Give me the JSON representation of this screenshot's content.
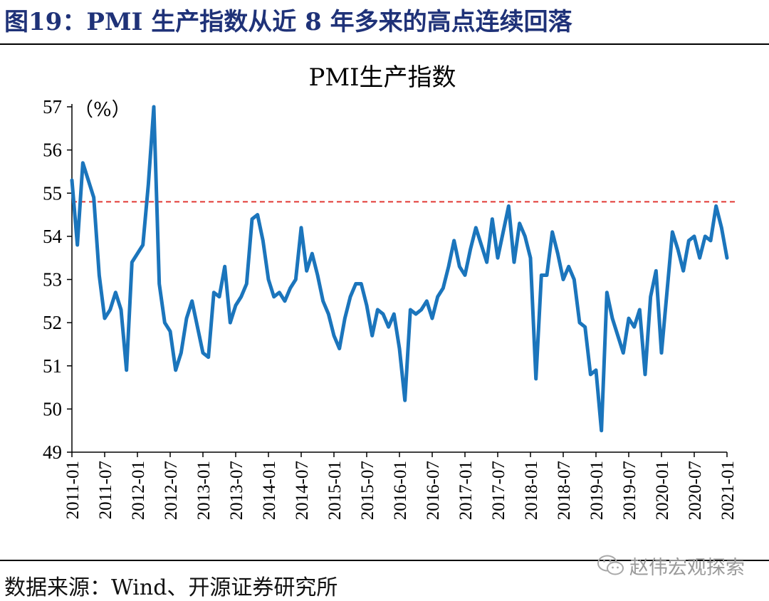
{
  "header": {
    "figure_title": "图19：PMI 生产指数从近 8 年多来的高点连续回落"
  },
  "footer": {
    "source": "数据来源：Wind、开源证券研究所",
    "watermark": "赵伟宏观探索",
    "watermark_icon": "wechat-icon"
  },
  "colors": {
    "title": "#1f3278",
    "line": "#1b75bc",
    "reference_line": "#e23a35"
  },
  "chart_data": {
    "type": "line",
    "title": "PMI生产指数",
    "ylabel": "（%）",
    "xlabel": "",
    "ylim": [
      49,
      57
    ],
    "yticks": [
      49,
      50,
      51,
      52,
      53,
      54,
      55,
      56,
      57
    ],
    "x_tick_labels": [
      "2011-01",
      "2011-07",
      "2012-01",
      "2012-07",
      "2013-01",
      "2013-07",
      "2014-01",
      "2014-07",
      "2015-01",
      "2015-07",
      "2016-01",
      "2016-07",
      "2017-01",
      "2017-07",
      "2018-01",
      "2018-07",
      "2019-01",
      "2019-07",
      "2020-01",
      "2020-07",
      "2021-01"
    ],
    "reference_line": {
      "y": 54.8,
      "style": "dashed"
    },
    "grid": false,
    "series": [
      {
        "x": [
          "2011-01",
          "2011-02",
          "2011-03",
          "2011-04",
          "2011-05",
          "2011-06",
          "2011-07",
          "2011-08",
          "2011-09",
          "2011-10",
          "2011-11",
          "2011-12",
          "2012-01",
          "2012-02",
          "2012-03",
          "2012-04",
          "2012-05",
          "2012-06",
          "2012-07",
          "2012-08",
          "2012-09",
          "2012-10",
          "2012-11",
          "2012-12",
          "2013-01",
          "2013-02",
          "2013-03",
          "2013-04",
          "2013-05",
          "2013-06",
          "2013-07",
          "2013-08",
          "2013-09",
          "2013-10",
          "2013-11",
          "2013-12",
          "2014-01",
          "2014-02",
          "2014-03",
          "2014-04",
          "2014-05",
          "2014-06",
          "2014-07",
          "2014-08",
          "2014-09",
          "2014-10",
          "2014-11",
          "2014-12",
          "2015-01",
          "2015-02",
          "2015-03",
          "2015-04",
          "2015-05",
          "2015-06",
          "2015-07",
          "2015-08",
          "2015-09",
          "2015-10",
          "2015-11",
          "2015-12",
          "2016-01",
          "2016-02",
          "2016-03",
          "2016-04",
          "2016-05",
          "2016-06",
          "2016-07",
          "2016-08",
          "2016-09",
          "2016-10",
          "2016-11",
          "2016-12",
          "2017-01",
          "2017-02",
          "2017-03",
          "2017-04",
          "2017-05",
          "2017-06",
          "2017-07",
          "2017-08",
          "2017-09",
          "2017-10",
          "2017-11",
          "2017-12",
          "2018-01",
          "2018-02",
          "2018-03",
          "2018-04",
          "2018-05",
          "2018-06",
          "2018-07",
          "2018-08",
          "2018-09",
          "2018-10",
          "2018-11",
          "2018-12",
          "2019-01",
          "2019-02",
          "2019-03",
          "2019-04",
          "2019-05",
          "2019-06",
          "2019-07",
          "2019-08",
          "2019-09",
          "2019-10",
          "2019-11",
          "2019-12",
          "2020-01",
          "2020-02",
          "2020-03",
          "2020-04",
          "2020-05",
          "2020-06",
          "2020-07",
          "2020-08",
          "2020-09",
          "2020-10",
          "2020-11",
          "2020-12",
          "2021-01"
        ],
        "values": [
          55.3,
          53.8,
          55.7,
          55.3,
          54.9,
          53.1,
          52.1,
          52.3,
          52.7,
          52.3,
          50.9,
          53.4,
          53.6,
          53.8,
          55.2,
          57.0,
          52.9,
          52.0,
          51.8,
          50.9,
          51.3,
          52.1,
          52.5,
          51.9,
          51.3,
          51.2,
          52.7,
          52.6,
          53.3,
          52.0,
          52.4,
          52.6,
          52.9,
          54.4,
          54.5,
          53.9,
          53.0,
          52.6,
          52.7,
          52.5,
          52.8,
          53.0,
          54.2,
          53.2,
          53.6,
          53.1,
          52.5,
          52.2,
          51.7,
          51.4,
          52.1,
          52.6,
          52.9,
          52.9,
          52.4,
          51.7,
          52.3,
          52.2,
          51.9,
          52.2,
          51.4,
          50.2,
          52.3,
          52.2,
          52.3,
          52.5,
          52.1,
          52.6,
          52.8,
          53.3,
          53.9,
          53.3,
          53.1,
          53.7,
          54.2,
          53.8,
          53.4,
          54.4,
          53.5,
          54.1,
          54.7,
          53.4,
          54.3,
          54.0,
          53.5,
          50.7,
          53.1,
          53.1,
          54.1,
          53.6,
          53.0,
          53.3,
          53.0,
          52.0,
          51.9,
          50.8,
          50.9,
          49.5,
          52.7,
          52.1,
          51.7,
          51.3,
          52.1,
          51.9,
          52.3,
          50.8,
          52.6,
          53.2,
          51.3,
          52.7,
          54.1,
          53.7,
          53.2,
          53.9,
          54.0,
          53.5,
          54.0,
          53.9,
          54.7,
          54.2,
          53.5
        ]
      }
    ]
  }
}
